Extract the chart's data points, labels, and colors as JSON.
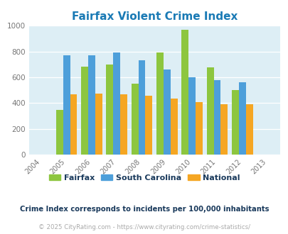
{
  "title": "Fairfax Violent Crime Index",
  "title_color": "#1a7ab5",
  "all_years": [
    2004,
    2005,
    2006,
    2007,
    2008,
    2009,
    2010,
    2011,
    2012,
    2013
  ],
  "data_years": [
    2005,
    2006,
    2007,
    2008,
    2009,
    2010,
    2011,
    2012
  ],
  "fairfax": [
    348,
    680,
    700,
    550,
    795,
    970,
    678,
    502
  ],
  "south_carolina": [
    768,
    768,
    795,
    730,
    662,
    600,
    575,
    560
  ],
  "national": [
    468,
    475,
    468,
    458,
    432,
    408,
    392,
    390
  ],
  "fairfax_color": "#8dc63f",
  "sc_color": "#4d9fda",
  "national_color": "#f5a623",
  "bg_color": "#ddeef5",
  "ylim": [
    0,
    1000
  ],
  "yticks": [
    0,
    200,
    400,
    600,
    800,
    1000
  ],
  "bar_width": 0.28,
  "legend_labels": [
    "Fairfax",
    "South Carolina",
    "National"
  ],
  "footnote1": "Crime Index corresponds to incidents per 100,000 inhabitants",
  "footnote2": "© 2025 CityRating.com - https://www.cityrating.com/crime-statistics/",
  "footnote1_color": "#1a3a5c",
  "footnote2_color": "#aaaaaa"
}
